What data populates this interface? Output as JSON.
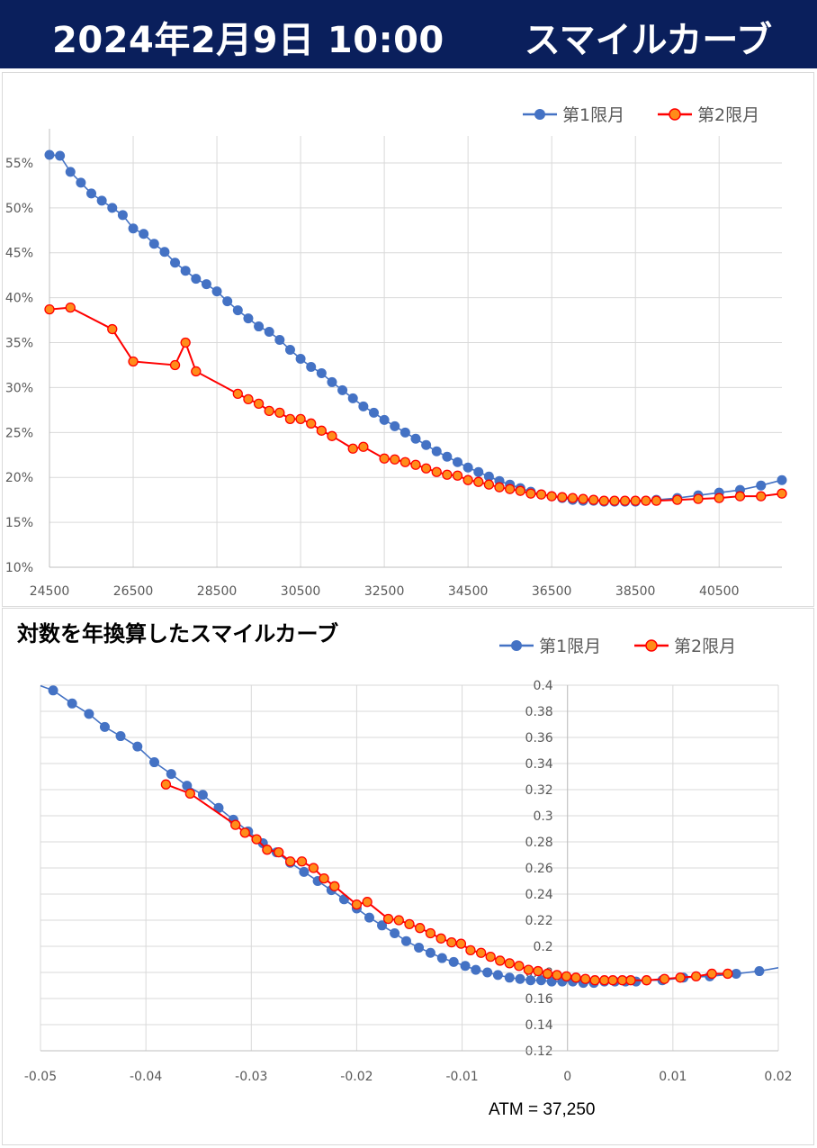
{
  "header": {
    "datetime": "2024年2月9日 10:00",
    "title": "スマイルカーブ"
  },
  "colors": {
    "header_bg": "#0a1f5c",
    "series1": "#4472c4",
    "series2_line": "#ff0000",
    "series2_fill": "#ff8c1a",
    "grid": "#d9d9d9"
  },
  "legend": {
    "series1": "第1限月",
    "series2": "第2限月"
  },
  "chart1": {
    "type": "line",
    "xlim": [
      24500,
      42000
    ],
    "ylim": [
      0.1,
      0.58
    ],
    "x_ticks": [
      "24500",
      "26500",
      "28500",
      "30500",
      "32500",
      "34500",
      "36500",
      "38500",
      "40500"
    ],
    "y_ticks": [
      "10%",
      "15%",
      "20%",
      "25%",
      "30%",
      "35%",
      "40%",
      "45%",
      "50%",
      "55%"
    ],
    "grid": "on",
    "legend_position": "top-right"
  },
  "chart2": {
    "title": "対数を年換算したスマイルカーブ",
    "xlim": [
      -0.05,
      0.02
    ],
    "ylim": [
      0.12,
      0.4
    ],
    "x_ticks": [
      "-0.05",
      "-0.04",
      "-0.03",
      "-0.02",
      "-0.01",
      "0",
      "0.01",
      "0.02"
    ],
    "y_ticks": [
      "0.12",
      "0.14",
      "0.16",
      "0.18",
      "0.2",
      "0.22",
      "0.24",
      "0.26",
      "0.28",
      "0.3",
      "0.32",
      "0.34",
      "0.36",
      "0.38",
      "0.4"
    ],
    "grid": "on",
    "legend_position": "top-right"
  },
  "atm_label": "ATM = 37,250",
  "chart_data": [
    {
      "type": "line",
      "title": "",
      "xlabel": "",
      "ylabel": "",
      "xlim": [
        24500,
        42000
      ],
      "ylim": [
        0.1,
        0.58
      ],
      "series": [
        {
          "name": "第1限月",
          "x": [
            24500,
            24750,
            25000,
            25250,
            25500,
            25750,
            26000,
            26250,
            26500,
            26750,
            27000,
            27250,
            27500,
            27750,
            28000,
            28250,
            28500,
            28750,
            29000,
            29250,
            29500,
            29750,
            30000,
            30250,
            30500,
            30750,
            31000,
            31250,
            31500,
            31750,
            32000,
            32250,
            32500,
            32750,
            33000,
            33250,
            33500,
            33750,
            34000,
            34250,
            34500,
            34750,
            35000,
            35250,
            35500,
            35750,
            36000,
            36250,
            36500,
            36750,
            37000,
            37250,
            37500,
            37750,
            38000,
            38250,
            38500,
            38750,
            39000,
            39500,
            40000,
            40500,
            41000,
            41500,
            42000
          ],
          "y": [
            0.559,
            0.558,
            0.54,
            0.528,
            0.516,
            0.508,
            0.5,
            0.492,
            0.477,
            0.471,
            0.46,
            0.451,
            0.439,
            0.43,
            0.421,
            0.415,
            0.407,
            0.396,
            0.386,
            0.377,
            0.368,
            0.362,
            0.353,
            0.342,
            0.332,
            0.323,
            0.316,
            0.306,
            0.297,
            0.288,
            0.279,
            0.272,
            0.264,
            0.257,
            0.25,
            0.243,
            0.236,
            0.229,
            0.223,
            0.217,
            0.211,
            0.206,
            0.201,
            0.196,
            0.192,
            0.188,
            0.184,
            0.181,
            0.179,
            0.177,
            0.175,
            0.174,
            0.174,
            0.173,
            0.173,
            0.173,
            0.173,
            0.174,
            0.175,
            0.177,
            0.18,
            0.183,
            0.186,
            0.191,
            0.197
          ]
        },
        {
          "name": "第2限月",
          "x": [
            24500,
            25000,
            26000,
            26500,
            27500,
            27750,
            28000,
            29000,
            29250,
            29500,
            29750,
            30000,
            30250,
            30500,
            30750,
            31000,
            31250,
            31750,
            32000,
            32500,
            32750,
            33000,
            33250,
            33500,
            33750,
            34000,
            34250,
            34500,
            34750,
            35000,
            35250,
            35500,
            35750,
            36000,
            36250,
            36500,
            36750,
            37000,
            37250,
            37500,
            37750,
            38000,
            38250,
            38500,
            38750,
            39000,
            39500,
            40000,
            40500,
            41000,
            41500,
            42000
          ],
          "y": [
            0.387,
            0.389,
            0.365,
            0.329,
            0.325,
            0.35,
            0.318,
            0.293,
            0.287,
            0.282,
            0.274,
            0.272,
            0.265,
            0.265,
            0.26,
            0.252,
            0.246,
            0.232,
            0.234,
            0.221,
            0.22,
            0.217,
            0.214,
            0.21,
            0.206,
            0.203,
            0.202,
            0.197,
            0.195,
            0.192,
            0.189,
            0.187,
            0.185,
            0.182,
            0.181,
            0.179,
            0.178,
            0.177,
            0.176,
            0.175,
            0.174,
            0.174,
            0.174,
            0.174,
            0.174,
            0.174,
            0.175,
            0.176,
            0.177,
            0.179,
            0.179,
            0.182
          ]
        }
      ]
    },
    {
      "type": "scatter",
      "title": "対数を年換算したスマイルカーブ",
      "xlabel": "",
      "ylabel": "",
      "xlim": [
        -0.05,
        0.02
      ],
      "ylim": [
        0.12,
        0.4
      ],
      "series": [
        {
          "name": "第1限月",
          "x": [
            -0.0515,
            -0.0488,
            -0.047,
            -0.0454,
            -0.0439,
            -0.0424,
            -0.0408,
            -0.0392,
            -0.0376,
            -0.0361,
            -0.0346,
            -0.0331,
            -0.0317,
            -0.0303,
            -0.0289,
            -0.0276,
            -0.0263,
            -0.025,
            -0.0237,
            -0.0224,
            -0.0212,
            -0.02,
            -0.0188,
            -0.0176,
            -0.0164,
            -0.0153,
            -0.0141,
            -0.013,
            -0.0119,
            -0.0108,
            -0.0097,
            -0.0087,
            -0.0076,
            -0.0066,
            -0.0055,
            -0.0045,
            -0.0035,
            -0.0025,
            -0.0015,
            -0.0005,
            0.0005,
            0.0015,
            0.0025,
            0.0035,
            0.0045,
            0.0055,
            0.0065,
            0.0075,
            0.009,
            0.011,
            0.0135,
            0.016,
            0.0182,
            0.021
          ],
          "y": [
            0.404,
            0.396,
            0.386,
            0.378,
            0.368,
            0.361,
            0.353,
            0.341,
            0.332,
            0.323,
            0.316,
            0.306,
            0.297,
            0.288,
            0.279,
            0.272,
            0.264,
            0.257,
            0.25,
            0.243,
            0.236,
            0.229,
            0.222,
            0.216,
            0.21,
            0.204,
            0.199,
            0.195,
            0.191,
            0.188,
            0.185,
            0.182,
            0.18,
            0.178,
            0.176,
            0.175,
            0.174,
            0.174,
            0.173,
            0.173,
            0.173,
            0.172,
            0.172,
            0.173,
            0.173,
            0.173,
            0.173,
            0.174,
            0.174,
            0.176,
            0.177,
            0.179,
            0.181,
            0.185
          ]
        },
        {
          "name": "第2限月",
          "x": [
            -0.0381,
            -0.0358,
            -0.0315,
            -0.0306,
            -0.0295,
            -0.0285,
            -0.0274,
            -0.0263,
            -0.0252,
            -0.0241,
            -0.0231,
            -0.0221,
            -0.02,
            -0.019,
            -0.017,
            -0.016,
            -0.015,
            -0.014,
            -0.013,
            -0.012,
            -0.011,
            -0.0101,
            -0.0092,
            -0.0082,
            -0.0073,
            -0.0064,
            -0.0055,
            -0.0046,
            -0.0037,
            -0.0028,
            -0.0019,
            -0.001,
            -0.0001,
            0.0008,
            0.0017,
            0.0026,
            0.0035,
            0.0043,
            0.0052,
            0.006,
            0.0075,
            0.0092,
            0.0107,
            0.0122,
            0.0137,
            0.0152
          ],
          "y": [
            0.324,
            0.317,
            0.293,
            0.287,
            0.282,
            0.274,
            0.272,
            0.265,
            0.265,
            0.26,
            0.252,
            0.246,
            0.232,
            0.234,
            0.221,
            0.22,
            0.217,
            0.214,
            0.21,
            0.206,
            0.203,
            0.202,
            0.197,
            0.195,
            0.192,
            0.189,
            0.187,
            0.185,
            0.182,
            0.181,
            0.179,
            0.178,
            0.177,
            0.176,
            0.175,
            0.174,
            0.174,
            0.174,
            0.174,
            0.174,
            0.174,
            0.175,
            0.176,
            0.177,
            0.179,
            0.179
          ]
        }
      ]
    }
  ]
}
